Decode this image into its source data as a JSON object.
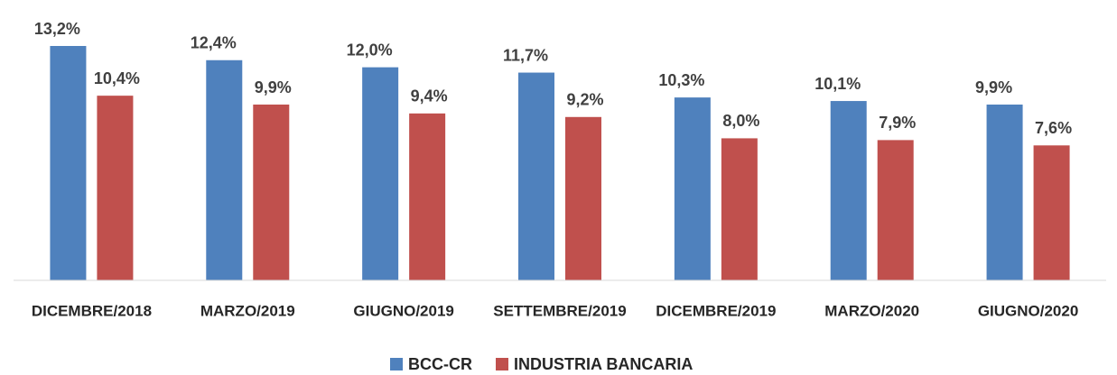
{
  "chart_data": {
    "type": "bar",
    "categories": [
      "DICEMBRE/2018",
      "MARZO/2019",
      "GIUGNO/2019",
      "SETTEMBRE/2019",
      "DICEMBRE/2019",
      "MARZO/2020",
      "GIUGNO/2020"
    ],
    "series": [
      {
        "name": "BCC-CR",
        "color": "#4f81bd",
        "values": [
          13.2,
          12.4,
          12.0,
          11.7,
          10.3,
          10.1,
          9.9
        ],
        "value_labels": [
          "13,2%",
          "12,4%",
          "12,0%",
          "11,7%",
          "10,3%",
          "10,1%",
          "9,9%"
        ]
      },
      {
        "name": "INDUSTRIA BANCARIA",
        "color": "#c0504d",
        "values": [
          10.4,
          9.9,
          9.4,
          9.2,
          8.0,
          7.9,
          7.6
        ],
        "value_labels": [
          "10,4%",
          "9,9%",
          "9,4%",
          "9,2%",
          "8,0%",
          "7,9%",
          "7,6%"
        ]
      }
    ],
    "legend": "bottom"
  }
}
